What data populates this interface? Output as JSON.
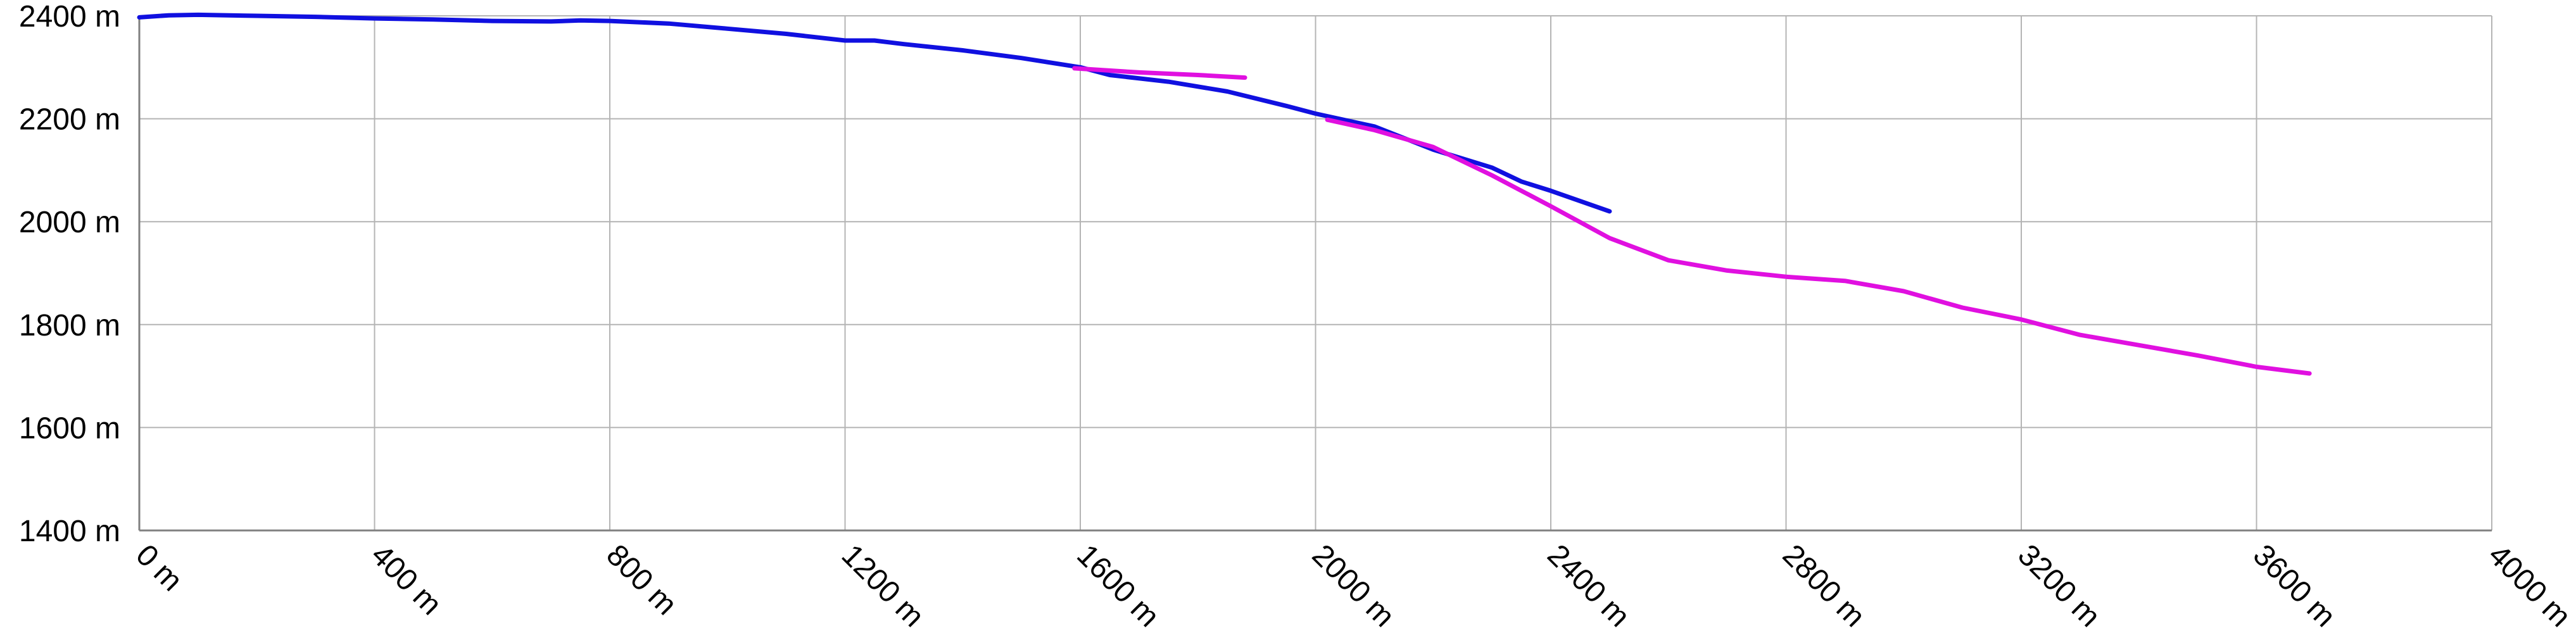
{
  "chart_data": {
    "type": "line",
    "title": "",
    "xlabel": "",
    "ylabel": "",
    "xlim": [
      0,
      4000
    ],
    "ylim": [
      1400,
      2400
    ],
    "x_ticks": [
      0,
      400,
      800,
      1200,
      1600,
      2000,
      2400,
      2800,
      3200,
      3600,
      4000
    ],
    "y_ticks": [
      1400,
      1600,
      1800,
      2000,
      2200,
      2400
    ],
    "x_tick_labels": [
      "0 m",
      "400 m",
      "800 m",
      "1200 m",
      "1600 m",
      "2000 m",
      "2400 m",
      "2800 m",
      "3200 m",
      "3600 m",
      "4000 m"
    ],
    "y_tick_labels": [
      "1400 m",
      "1600 m",
      "1800 m",
      "2000 m",
      "2200 m",
      "2400 m"
    ],
    "grid": true,
    "legend": "none",
    "series": [
      {
        "color": "#1010e0",
        "points": [
          [
            0,
            2397
          ],
          [
            50,
            2401
          ],
          [
            100,
            2402
          ],
          [
            200,
            2400
          ],
          [
            300,
            2398
          ],
          [
            400,
            2395
          ],
          [
            500,
            2393
          ],
          [
            600,
            2390
          ],
          [
            700,
            2389
          ],
          [
            750,
            2391
          ],
          [
            800,
            2390
          ],
          [
            900,
            2385
          ],
          [
            1000,
            2375
          ],
          [
            1100,
            2365
          ],
          [
            1200,
            2352
          ],
          [
            1250,
            2352
          ],
          [
            1300,
            2345
          ],
          [
            1400,
            2333
          ],
          [
            1500,
            2318
          ],
          [
            1600,
            2300
          ],
          [
            1650,
            2285
          ],
          [
            1750,
            2272
          ],
          [
            1850,
            2253
          ],
          [
            1950,
            2225
          ],
          [
            2000,
            2210
          ],
          [
            2100,
            2185
          ],
          [
            2200,
            2140
          ],
          [
            2300,
            2105
          ],
          [
            2350,
            2078
          ],
          [
            2400,
            2060
          ],
          [
            2500,
            2020
          ]
        ]
      },
      {
        "color": "#e010e0",
        "points": [
          [
            1590,
            2298
          ],
          [
            1700,
            2290
          ],
          [
            1800,
            2285
          ],
          [
            1880,
            2280
          ],
          null,
          [
            2020,
            2198
          ],
          [
            2100,
            2178
          ],
          [
            2200,
            2145
          ],
          [
            2300,
            2090
          ],
          [
            2400,
            2030
          ],
          [
            2500,
            1968
          ],
          [
            2600,
            1925
          ],
          [
            2700,
            1905
          ],
          [
            2800,
            1893
          ],
          [
            2900,
            1885
          ],
          [
            3000,
            1865
          ],
          [
            3100,
            1833
          ],
          [
            3200,
            1810
          ],
          [
            3300,
            1780
          ],
          [
            3400,
            1760
          ],
          [
            3500,
            1740
          ],
          [
            3600,
            1718
          ],
          [
            3690,
            1705
          ]
        ]
      }
    ]
  }
}
